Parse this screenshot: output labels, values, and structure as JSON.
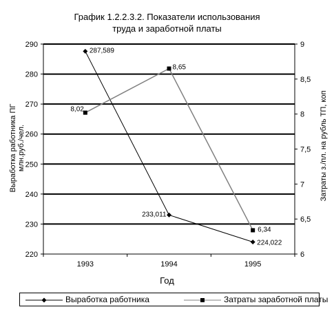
{
  "title_line1": "График 1.2.2.3.2.  Показатели использования",
  "title_line2": "труда и заработной платы",
  "ylabel_left_line1": "Выработка работника ПГ",
  "ylabel_left_line2": "млн.руб./чел.",
  "ylabel_right": "Затраты з./пл. на рубль ТП, коп",
  "xlabel": "Год",
  "chart_data": {
    "type": "line",
    "categories": [
      "1993",
      "1994",
      "1995"
    ],
    "y_left": {
      "min": 220,
      "max": 290,
      "step": 10
    },
    "y_right": {
      "min": 6,
      "max": 9,
      "step": 0.5
    },
    "grid": "horizontal",
    "legend_position": "bottom",
    "series": [
      {
        "name": "Выработка работника",
        "axis": "left",
        "marker": "diamond",
        "color": "#000000",
        "values": [
          287.589,
          233.011,
          224.022
        ],
        "labels": [
          "287,589",
          "233,011",
          "224,022"
        ]
      },
      {
        "name": "Затраты заработной платы",
        "axis": "right",
        "marker": "square",
        "color": "#808080",
        "values": [
          8.02,
          8.65,
          6.34
        ],
        "labels": [
          "8,02",
          "8,65",
          "6,34"
        ]
      }
    ]
  }
}
